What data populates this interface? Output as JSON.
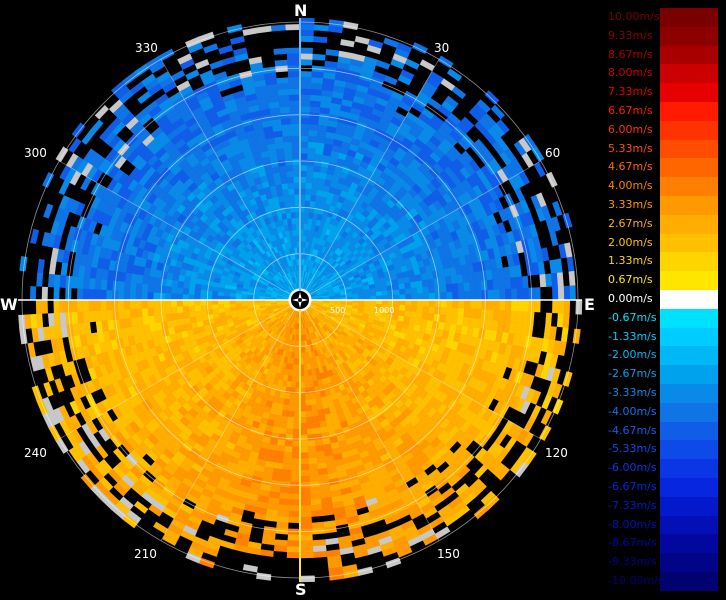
{
  "radar": {
    "cardinals": {
      "N": "N",
      "E": "E",
      "S": "S",
      "W": "W"
    },
    "azimuth_labels": [
      "30",
      "60",
      "120",
      "150",
      "210",
      "240",
      "300",
      "330"
    ],
    "range_labels": [
      "500",
      "1000"
    ],
    "chart_data": {
      "type": "polar-heatmap",
      "quantity": "radial velocity",
      "unit": "m/s",
      "range_rings_m": [
        500,
        1000,
        1500,
        2000,
        2500,
        3000
      ],
      "pattern": {
        "north_half_mean_mps": -4.0,
        "south_half_mean_mps": 3.0
      }
    }
  },
  "legend": {
    "items": [
      {
        "label": "10.00m/s",
        "color": "#7a0000"
      },
      {
        "label": "9.33m/s",
        "color": "#8c0000"
      },
      {
        "label": "8.67m/s",
        "color": "#a80000"
      },
      {
        "label": "8.00m/s",
        "color": "#cc0000"
      },
      {
        "label": "7.33m/s",
        "color": "#e60000"
      },
      {
        "label": "6.67m/s",
        "color": "#ff1a00"
      },
      {
        "label": "6.00m/s",
        "color": "#ff3300"
      },
      {
        "label": "5.33m/s",
        "color": "#ff4d00"
      },
      {
        "label": "4.67m/s",
        "color": "#ff6600"
      },
      {
        "label": "4.00m/s",
        "color": "#ff8000"
      },
      {
        "label": "3.33m/s",
        "color": "#ff9900"
      },
      {
        "label": "2.67m/s",
        "color": "#ffad00"
      },
      {
        "label": "2.00m/s",
        "color": "#ffc000"
      },
      {
        "label": "1.33m/s",
        "color": "#ffd500"
      },
      {
        "label": "0.67m/s",
        "color": "#ffe600"
      },
      {
        "label": "0.00m/s",
        "color": "#ffffff"
      },
      {
        "label": "-0.67m/s",
        "color": "#00e0ff"
      },
      {
        "label": "-1.33m/s",
        "color": "#00ccff"
      },
      {
        "label": "-2.00m/s",
        "color": "#00b8f5"
      },
      {
        "label": "-2.67m/s",
        "color": "#00a2ee"
      },
      {
        "label": "-3.33m/s",
        "color": "#0a8ae8"
      },
      {
        "label": "-4.00m/s",
        "color": "#0f74e6"
      },
      {
        "label": "-4.67m/s",
        "color": "#105ee8"
      },
      {
        "label": "-5.33m/s",
        "color": "#0e4ae8"
      },
      {
        "label": "-6.00m/s",
        "color": "#0a36e6"
      },
      {
        "label": "-6.67m/s",
        "color": "#0626df"
      },
      {
        "label": "-7.33m/s",
        "color": "#0418cc"
      },
      {
        "label": "-8.00m/s",
        "color": "#0210b6"
      },
      {
        "label": "-8.67m/s",
        "color": "#02089f"
      },
      {
        "label": "-9.33m/s",
        "color": "#020488"
      },
      {
        "label": "-10.00m/s",
        "color": "#010170"
      }
    ]
  }
}
